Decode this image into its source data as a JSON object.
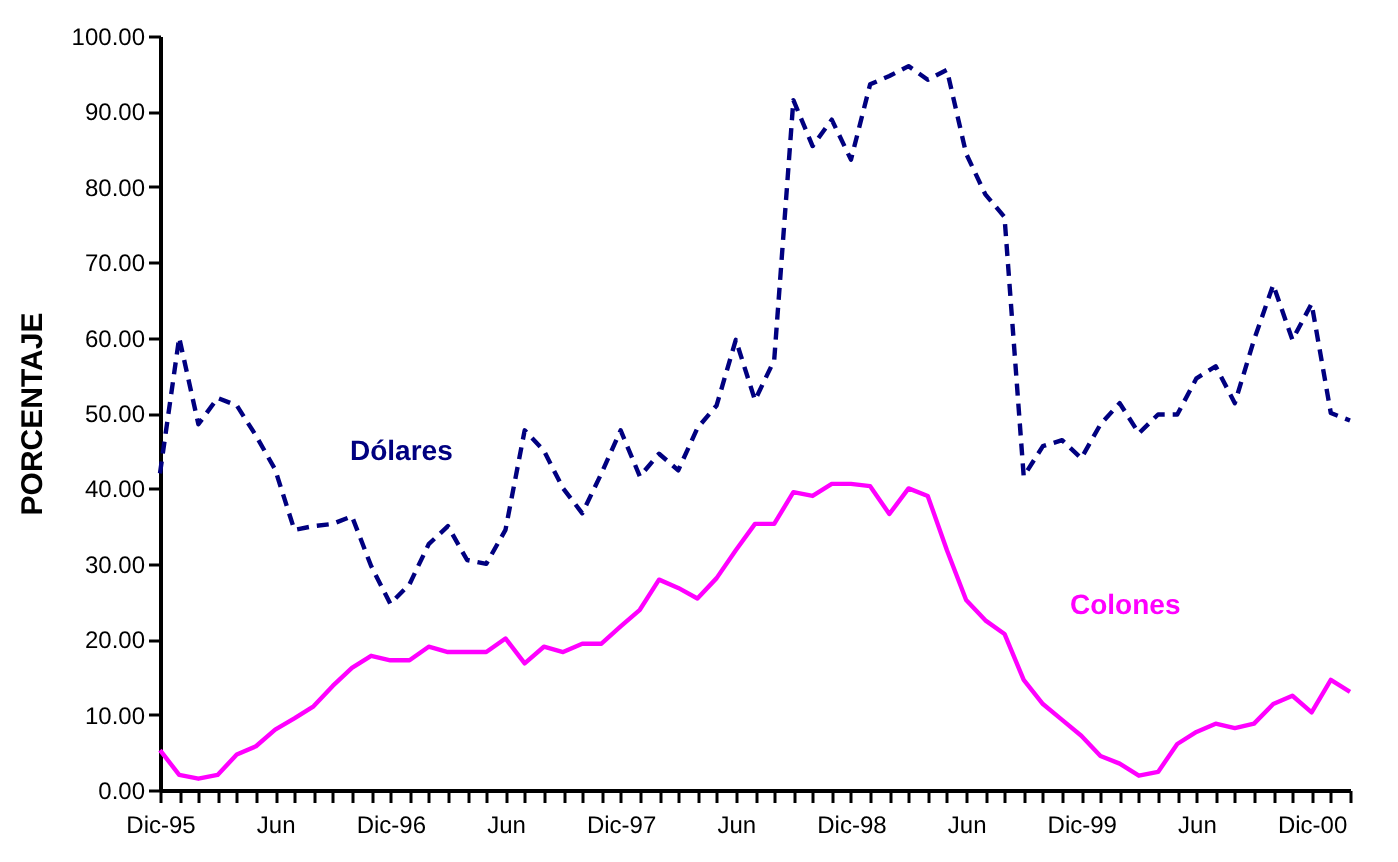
{
  "chart_data": {
    "type": "line",
    "ylabel": "PORCENTAJE",
    "categories": [
      "Dic-95",
      null,
      null,
      null,
      null,
      null,
      "Jun",
      null,
      null,
      null,
      null,
      null,
      "Dic-96",
      null,
      null,
      null,
      null,
      null,
      "Jun",
      null,
      null,
      null,
      null,
      null,
      "Dic-97",
      null,
      null,
      null,
      null,
      null,
      "Jun",
      null,
      null,
      null,
      null,
      null,
      "Dic-98",
      null,
      null,
      null,
      null,
      null,
      "Jun",
      null,
      null,
      null,
      null,
      null,
      "Dic-99",
      null,
      null,
      null,
      null,
      null,
      "Jun",
      null,
      null,
      null,
      null,
      null,
      "Dic-00",
      null,
      null
    ],
    "series": [
      {
        "name": "Dólares",
        "color": "#000080",
        "line_style": "dashed",
        "values": [
          42,
          60,
          48.5,
          52,
          51,
          47,
          42.5,
          34.5,
          35,
          35.3,
          36.3,
          29.7,
          24.7,
          27.3,
          32.6,
          35,
          30.5,
          30,
          34.5,
          47.7,
          45,
          40,
          36.7,
          42,
          47.7,
          41.6,
          44.6,
          42.4,
          48,
          51,
          59.7,
          51.7,
          57,
          91.5,
          85.4,
          88.9,
          83.6,
          93.6,
          94.7,
          96,
          94.2,
          95.5,
          84.4,
          79,
          76,
          41.6,
          45.6,
          46.4,
          44,
          48.5,
          51.3,
          47.3,
          49.8,
          49.8,
          54.6,
          56.2,
          51.3,
          59.7,
          67,
          59.7,
          64.5,
          50,
          49
        ]
      },
      {
        "name": "Colones",
        "color": "#ff00ff",
        "line_style": "solid",
        "values": [
          5.3,
          2,
          1.5,
          2,
          4.7,
          5.8,
          8,
          9.5,
          11.1,
          13.8,
          16.2,
          17.8,
          17.2,
          17.2,
          19,
          18.3,
          18.3,
          18.3,
          20.1,
          16.8,
          19,
          18.3,
          19.4,
          19.4,
          21.7,
          23.9,
          27.9,
          26.8,
          25.4,
          28.1,
          31.8,
          35.3,
          35.3,
          39.5,
          39,
          40.6,
          40.6,
          40.3,
          36.6,
          40,
          39,
          31.8,
          25.2,
          22.5,
          20.7,
          14.6,
          11.4,
          9.3,
          7.2,
          4.5,
          3.5,
          1.9,
          2.4,
          6.1,
          7.7,
          8.8,
          8.2,
          8.8,
          11.4,
          12.5,
          10.3,
          14.6,
          13
        ]
      }
    ],
    "ylim": [
      0,
      100
    ],
    "yticks": [
      {
        "value": 0,
        "label": "0.00"
      },
      {
        "value": 10,
        "label": "10.00"
      },
      {
        "value": 20,
        "label": "20.00"
      },
      {
        "value": 30,
        "label": "30.00"
      },
      {
        "value": 40,
        "label": "40.00"
      },
      {
        "value": 50,
        "label": "50.00"
      },
      {
        "value": 60,
        "label": "60.00"
      },
      {
        "value": 70,
        "label": "70.00"
      },
      {
        "value": 80,
        "label": "80.00"
      },
      {
        "value": 90,
        "label": "90.00"
      },
      {
        "value": 100,
        "label": "100.00"
      }
    ],
    "grid": false,
    "legend": false,
    "marker": "none"
  }
}
